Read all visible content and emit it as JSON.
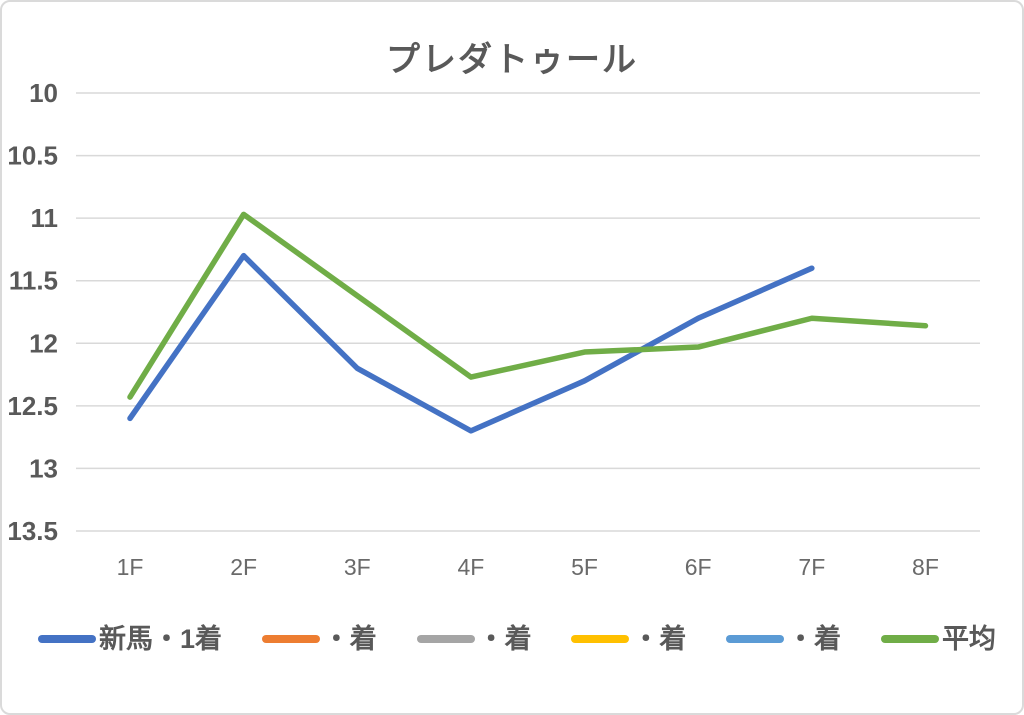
{
  "chart_data": {
    "type": "line",
    "title": "プレダトゥール",
    "x_categories": [
      "1F",
      "2F",
      "3F",
      "4F",
      "5F",
      "6F",
      "7F",
      "8F"
    ],
    "y_axis": {
      "min": 10,
      "max": 13.5,
      "step": 0.5,
      "inverted": true,
      "ticks": [
        "10",
        "10.5",
        "11",
        "11.5",
        "12",
        "12.5",
        "13",
        "13.5"
      ]
    },
    "grid": true,
    "legend_position": "bottom",
    "series": [
      {
        "name": "新馬・1着",
        "color": "#4472C4",
        "values": [
          12.6,
          11.3,
          12.2,
          12.7,
          12.3,
          11.8,
          11.4,
          null
        ]
      },
      {
        "name": "・着",
        "color": "#ED7D31",
        "values": []
      },
      {
        "name": "・着",
        "color": "#A5A5A5",
        "values": []
      },
      {
        "name": "・着",
        "color": "#FFC000",
        "values": []
      },
      {
        "name": "・着",
        "color": "#5B9BD5",
        "values": []
      },
      {
        "name": "平均",
        "color": "#70AD47",
        "values": [
          12.43,
          10.97,
          11.62,
          12.27,
          12.07,
          12.03,
          11.8,
          11.86
        ]
      }
    ]
  },
  "colors": {
    "text": "#595959",
    "gridline": "#D9D9D9",
    "background": "#FFFFFF"
  }
}
